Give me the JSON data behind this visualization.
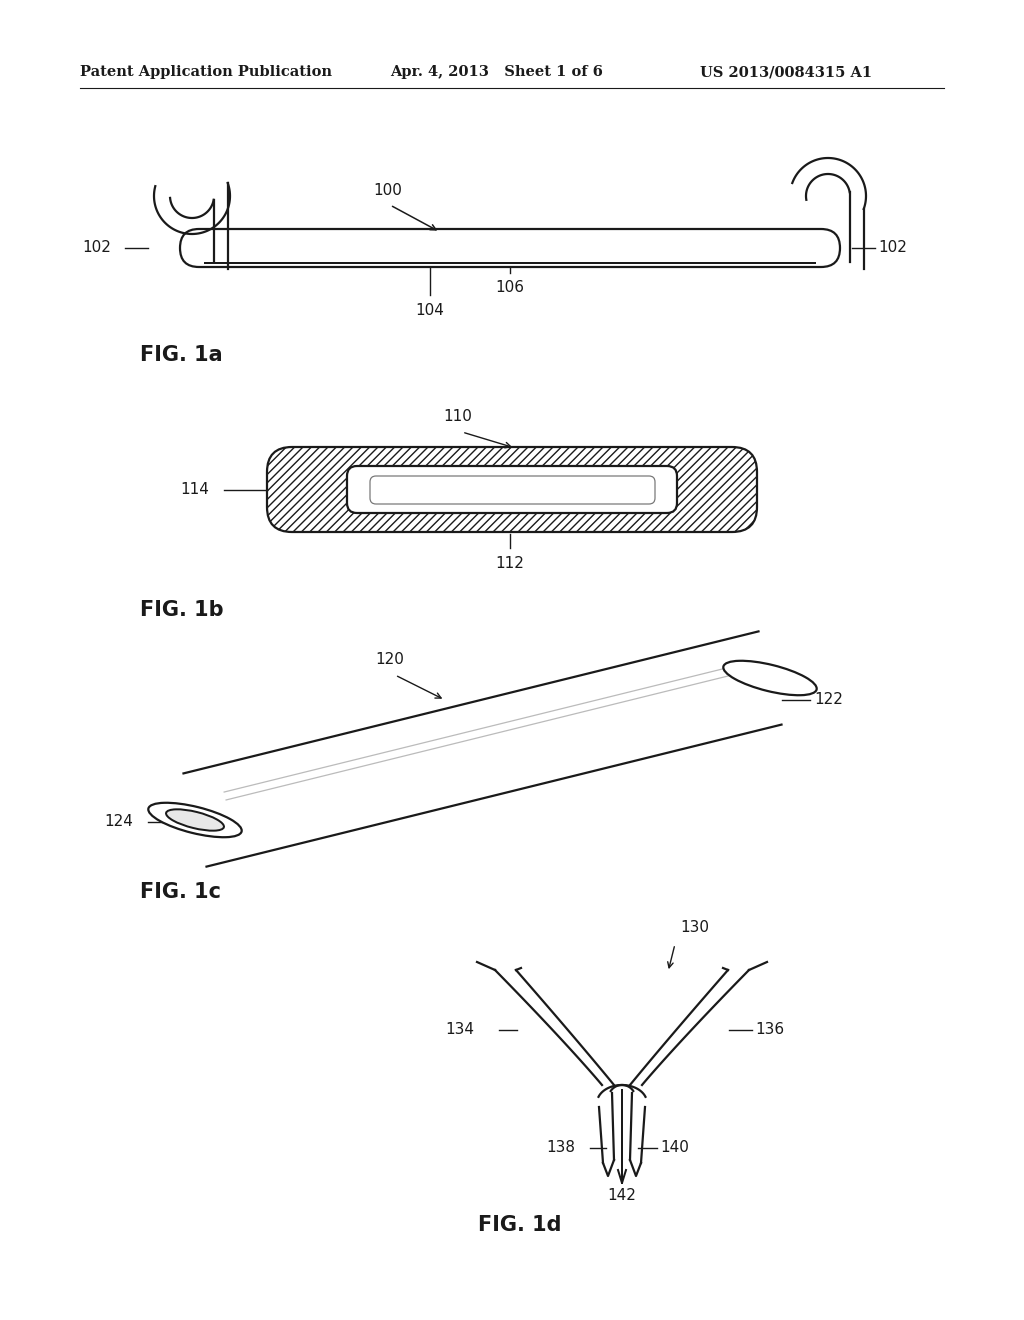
{
  "bg_color": "#ffffff",
  "line_color": "#1a1a1a",
  "header_left": "Patent Application Publication",
  "header_mid": "Apr. 4, 2013   Sheet 1 of 6",
  "header_right": "US 2013/0084315 A1",
  "fig1a_label": "FIG. 1a",
  "fig1b_label": "FIG. 1b",
  "fig1c_label": "FIG. 1c",
  "fig1d_label": "FIG. 1d",
  "lw": 1.6
}
